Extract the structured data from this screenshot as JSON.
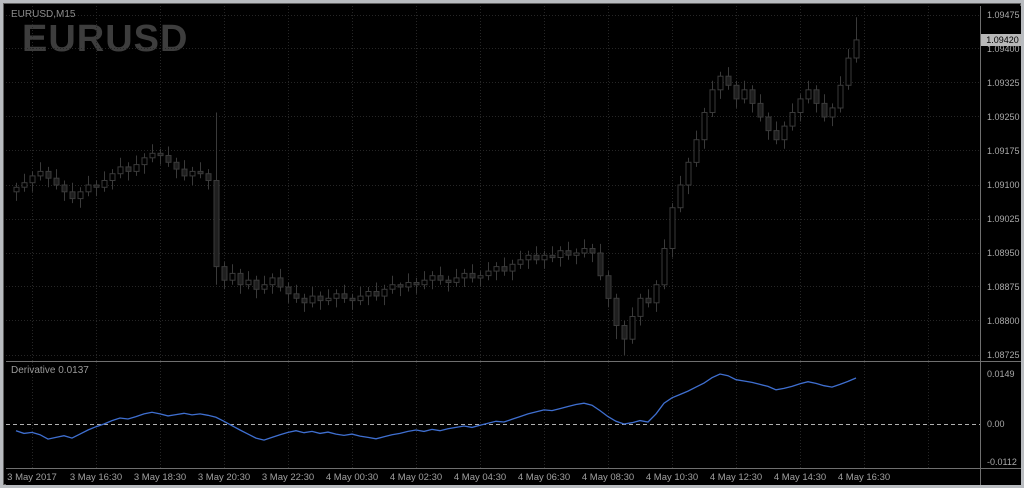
{
  "window": {
    "symbol_label": "EURUSD,M15",
    "watermark": "EURUSD"
  },
  "colors": {
    "background": "#000000",
    "grid": "#262626",
    "candle_outline": "#3a3a3a",
    "bull_body": "#000000",
    "bear_body": "#1f1f1f",
    "axis_text": "#a9a9a9",
    "watermark": "#3d3d3d",
    "indicator_line": "#3f6fd0",
    "zero_line": "#b0b0b0",
    "price_tag_bg": "#b8b8b8",
    "price_tag_text": "#000000",
    "separator": "#6f6f6f"
  },
  "chart_data": {
    "type": "candlestick",
    "title": "EURUSD,M15",
    "symbol": "EURUSD",
    "timeframe": "M15",
    "price_axis": {
      "min": 1.08725,
      "max": 1.09475,
      "step": 0.00075,
      "ticks": [
        1.09475,
        1.094,
        1.09325,
        1.0925,
        1.09175,
        1.091,
        1.09025,
        1.0895,
        1.08875,
        1.088,
        1.08725
      ],
      "current_price": 1.0942,
      "current_price_label": "1.09420"
    },
    "time_axis": {
      "labels": [
        "3 May 2017",
        "3 May 16:30",
        "3 May 18:30",
        "3 May 20:30",
        "3 May 22:30",
        "4 May 00:30",
        "4 May 02:30",
        "4 May 04:30",
        "4 May 06:30",
        "4 May 08:30",
        "4 May 10:30",
        "4 May 12:30",
        "4 May 14:30",
        "4 May 16:30"
      ]
    },
    "candles_ohlc": [
      [
        1.09085,
        1.09105,
        1.09065,
        1.09095
      ],
      [
        1.09095,
        1.09125,
        1.09085,
        1.09105
      ],
      [
        1.09105,
        1.0913,
        1.09085,
        1.0912
      ],
      [
        1.0912,
        1.0915,
        1.0911,
        1.0913
      ],
      [
        1.0913,
        1.0914,
        1.09095,
        1.09115
      ],
      [
        1.09115,
        1.09135,
        1.0909,
        1.091
      ],
      [
        1.091,
        1.0911,
        1.09065,
        1.09085
      ],
      [
        1.09085,
        1.09105,
        1.0906,
        1.0907
      ],
      [
        1.0907,
        1.09095,
        1.0905,
        1.09085
      ],
      [
        1.09085,
        1.0912,
        1.09075,
        1.091
      ],
      [
        1.091,
        1.0911,
        1.09075,
        1.09095
      ],
      [
        1.09095,
        1.0913,
        1.09085,
        1.0911
      ],
      [
        1.0911,
        1.09135,
        1.0909,
        1.09125
      ],
      [
        1.09125,
        1.0916,
        1.09115,
        1.0914
      ],
      [
        1.0914,
        1.0915,
        1.0911,
        1.0913
      ],
      [
        1.0913,
        1.09165,
        1.0912,
        1.09145
      ],
      [
        1.09145,
        1.0917,
        1.09125,
        1.0916
      ],
      [
        1.0916,
        1.0919,
        1.0915,
        1.0917
      ],
      [
        1.0917,
        1.0918,
        1.09145,
        1.09165
      ],
      [
        1.09165,
        1.09185,
        1.0914,
        1.0915
      ],
      [
        1.0915,
        1.0916,
        1.09115,
        1.09135
      ],
      [
        1.09135,
        1.09155,
        1.0911,
        1.0912
      ],
      [
        1.0912,
        1.0914,
        1.091,
        1.0913
      ],
      [
        1.0913,
        1.0915,
        1.09115,
        1.09125
      ],
      [
        1.09125,
        1.09135,
        1.0909,
        1.0911
      ],
      [
        1.0911,
        1.0926,
        1.0888,
        1.0892
      ],
      [
        1.0892,
        1.0893,
        1.0887,
        1.0889
      ],
      [
        1.0889,
        1.08925,
        1.0888,
        1.08905
      ],
      [
        1.08905,
        1.08915,
        1.0886,
        1.0888
      ],
      [
        1.0888,
        1.0891,
        1.0887,
        1.0889
      ],
      [
        1.0889,
        1.089,
        1.0885,
        1.0887
      ],
      [
        1.0887,
        1.089,
        1.0886,
        1.0888
      ],
      [
        1.0888,
        1.08905,
        1.0886,
        1.08895
      ],
      [
        1.08895,
        1.08915,
        1.08865,
        1.08875
      ],
      [
        1.08875,
        1.08885,
        1.0884,
        1.0886
      ],
      [
        1.0886,
        1.0888,
        1.0884,
        1.0885
      ],
      [
        1.0885,
        1.0886,
        1.0882,
        1.0884
      ],
      [
        1.0884,
        1.08875,
        1.0883,
        1.08855
      ],
      [
        1.08855,
        1.08865,
        1.08825,
        1.08845
      ],
      [
        1.08845,
        1.0887,
        1.08835,
        1.0885
      ],
      [
        1.0885,
        1.0887,
        1.0883,
        1.0886
      ],
      [
        1.0886,
        1.0888,
        1.0884,
        1.0885
      ],
      [
        1.0885,
        1.0886,
        1.08825,
        1.08845
      ],
      [
        1.08845,
        1.08875,
        1.08835,
        1.08855
      ],
      [
        1.08855,
        1.08875,
        1.08835,
        1.08865
      ],
      [
        1.08865,
        1.08885,
        1.08845,
        1.08855
      ],
      [
        1.08855,
        1.0888,
        1.08835,
        1.0887
      ],
      [
        1.0887,
        1.089,
        1.0886,
        1.0888
      ],
      [
        1.0888,
        1.08885,
        1.08855,
        1.08875
      ],
      [
        1.08875,
        1.08905,
        1.08865,
        1.08885
      ],
      [
        1.08885,
        1.08895,
        1.0886,
        1.0888
      ],
      [
        1.0888,
        1.0891,
        1.0887,
        1.0889
      ],
      [
        1.0889,
        1.0891,
        1.0887,
        1.089
      ],
      [
        1.089,
        1.0892,
        1.0888,
        1.0889
      ],
      [
        1.0889,
        1.089,
        1.08865,
        1.08885
      ],
      [
        1.08885,
        1.08915,
        1.08875,
        1.08895
      ],
      [
        1.08895,
        1.08915,
        1.08875,
        1.08905
      ],
      [
        1.08905,
        1.08925,
        1.08885,
        1.08895
      ],
      [
        1.08895,
        1.0891,
        1.08875,
        1.089
      ],
      [
        1.089,
        1.0893,
        1.0889,
        1.0891
      ],
      [
        1.0891,
        1.0893,
        1.0889,
        1.0892
      ],
      [
        1.0892,
        1.0894,
        1.089,
        1.0891
      ],
      [
        1.0891,
        1.08935,
        1.0889,
        1.08925
      ],
      [
        1.08925,
        1.08955,
        1.08915,
        1.08935
      ],
      [
        1.08935,
        1.08955,
        1.08915,
        1.08945
      ],
      [
        1.08945,
        1.08965,
        1.08925,
        1.08935
      ],
      [
        1.08935,
        1.08955,
        1.08915,
        1.08945
      ],
      [
        1.08945,
        1.08965,
        1.0893,
        1.0894
      ],
      [
        1.0894,
        1.08965,
        1.0892,
        1.08955
      ],
      [
        1.08955,
        1.08975,
        1.08935,
        1.08945
      ],
      [
        1.08945,
        1.0896,
        1.08925,
        1.0895
      ],
      [
        1.0895,
        1.0898,
        1.0894,
        1.0896
      ],
      [
        1.0896,
        1.0897,
        1.0893,
        1.0895
      ],
      [
        1.0895,
        1.0897,
        1.0889,
        1.089
      ],
      [
        1.089,
        1.0891,
        1.0883,
        1.0885
      ],
      [
        1.0885,
        1.0886,
        1.0876,
        1.0879
      ],
      [
        1.0879,
        1.088,
        1.08725,
        1.0876
      ],
      [
        1.0876,
        1.0883,
        1.0875,
        1.0881
      ],
      [
        1.0881,
        1.0886,
        1.0879,
        1.0885
      ],
      [
        1.0885,
        1.0887,
        1.0883,
        1.0884
      ],
      [
        1.0884,
        1.0889,
        1.0882,
        1.0888
      ],
      [
        1.0888,
        1.0898,
        1.0887,
        1.0896
      ],
      [
        1.0896,
        1.0906,
        1.0894,
        1.0905
      ],
      [
        1.0905,
        1.0912,
        1.0904,
        1.091
      ],
      [
        1.091,
        1.0916,
        1.0908,
        1.0915
      ],
      [
        1.0915,
        1.0922,
        1.0914,
        1.092
      ],
      [
        1.092,
        1.0927,
        1.0918,
        1.0926
      ],
      [
        1.0926,
        1.0933,
        1.0925,
        1.0931
      ],
      [
        1.0931,
        1.0935,
        1.0929,
        1.0934
      ],
      [
        1.0934,
        1.0936,
        1.0931,
        1.0932
      ],
      [
        1.0932,
        1.0933,
        1.0927,
        1.0929
      ],
      [
        1.0929,
        1.0933,
        1.0928,
        1.0931
      ],
      [
        1.0931,
        1.0932,
        1.0926,
        1.0928
      ],
      [
        1.0928,
        1.093,
        1.0924,
        1.0925
      ],
      [
        1.0925,
        1.0926,
        1.092,
        1.0922
      ],
      [
        1.0922,
        1.0924,
        1.0919,
        1.092
      ],
      [
        1.092,
        1.0924,
        1.0918,
        1.0923
      ],
      [
        1.0923,
        1.0928,
        1.0922,
        1.0926
      ],
      [
        1.0926,
        1.093,
        1.0924,
        1.0929
      ],
      [
        1.0929,
        1.0933,
        1.0928,
        1.0931
      ],
      [
        1.0931,
        1.0932,
        1.0926,
        1.0928
      ],
      [
        1.0928,
        1.093,
        1.0924,
        1.0925
      ],
      [
        1.0925,
        1.0928,
        1.0923,
        1.0927
      ],
      [
        1.0927,
        1.0934,
        1.0926,
        1.0932
      ],
      [
        1.0932,
        1.094,
        1.0931,
        1.0938
      ],
      [
        1.0938,
        1.0947,
        1.0937,
        1.0942
      ]
    ],
    "indicator": {
      "name": "Derivative",
      "type": "line",
      "value_label": "Derivative 0.0137",
      "current_value": 0.0137,
      "axis_ticks": [
        {
          "label": "0.0149",
          "value": 0.0149
        },
        {
          "label": "0.00",
          "value": 0
        },
        {
          "label": "-0.0112",
          "value": -0.0112
        }
      ],
      "values": [
        -0.002,
        -0.0028,
        -0.0025,
        -0.0032,
        -0.0045,
        -0.004,
        -0.0035,
        -0.0042,
        -0.003,
        -0.0018,
        -0.0008,
        0.0,
        0.001,
        0.0018,
        0.0015,
        0.0022,
        0.003,
        0.0035,
        0.003,
        0.0024,
        0.0028,
        0.0032,
        0.0027,
        0.003,
        0.0026,
        0.002,
        0.0008,
        -0.0005,
        -0.0018,
        -0.003,
        -0.0042,
        -0.0048,
        -0.004,
        -0.0032,
        -0.0025,
        -0.002,
        -0.0026,
        -0.0022,
        -0.0028,
        -0.0024,
        -0.003,
        -0.0034,
        -0.003,
        -0.0036,
        -0.004,
        -0.0044,
        -0.0038,
        -0.0032,
        -0.0028,
        -0.0022,
        -0.0018,
        -0.0022,
        -0.0016,
        -0.002,
        -0.0014,
        -0.001,
        -0.0006,
        -0.001,
        -0.0004,
        0.0002,
        0.0008,
        0.0006,
        0.0014,
        0.0022,
        0.003,
        0.0036,
        0.0042,
        0.004,
        0.0046,
        0.0052,
        0.0058,
        0.0062,
        0.0056,
        0.004,
        0.0022,
        0.0008,
        0.0,
        0.0004,
        0.001,
        0.0006,
        0.003,
        0.0062,
        0.0078,
        0.0088,
        0.0098,
        0.011,
        0.0122,
        0.0138,
        0.0149,
        0.0144,
        0.0132,
        0.0128,
        0.0124,
        0.0118,
        0.0112,
        0.0102,
        0.0106,
        0.0112,
        0.012,
        0.0126,
        0.0121,
        0.0114,
        0.011,
        0.0118,
        0.0127,
        0.0137
      ]
    }
  }
}
